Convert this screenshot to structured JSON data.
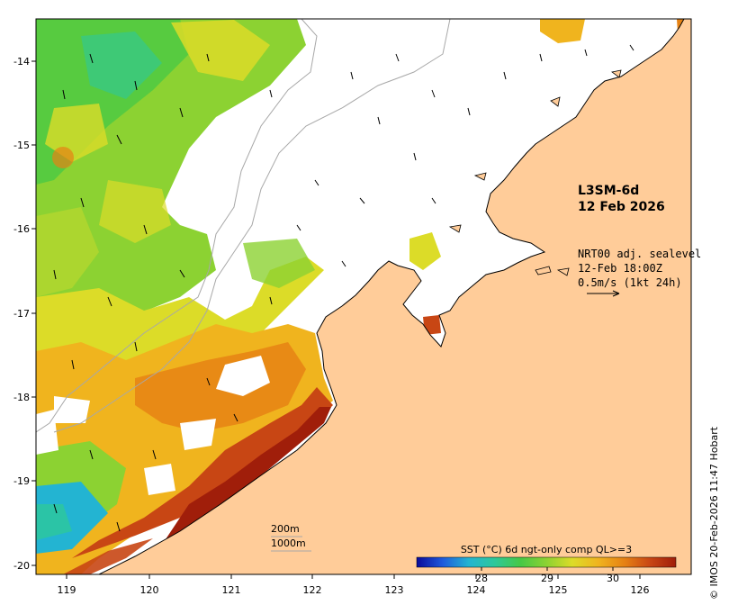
{
  "product": {
    "title": "L3SM-6d",
    "date": "12 Feb 2026"
  },
  "current": {
    "source": "NRT00 adj. sealevel",
    "time": "12-Feb 18:00Z",
    "scale": "0.5m/s (1kt 24h)"
  },
  "isobaths": {
    "shallow": "200m",
    "deep": "1000m"
  },
  "colorbar": {
    "title": "SST (°C) 6d ngt-only comp QL>=3",
    "ticks": [
      "28",
      "29",
      "30"
    ],
    "colors": [
      "#0a0a9a",
      "#1e5adc",
      "#23b4d2",
      "#2dc89b",
      "#46c846",
      "#8cd232",
      "#dcdc28",
      "#f0b41e",
      "#e68214",
      "#c84614",
      "#a01e0a"
    ]
  },
  "axes": {
    "x_ticks": [
      "119",
      "120",
      "121",
      "122",
      "123",
      "124",
      "125",
      "126"
    ],
    "y_ticks": [
      "-14",
      "-15",
      "-16",
      "-17",
      "-18",
      "-19",
      "-20"
    ]
  },
  "credit": "© IMOS 20-Feb-2026 11:47 Hobart",
  "colors": {
    "land": "#ffcc99",
    "no_data": "#ffffff",
    "coast": "#000000",
    "isobath": "#a8a8a8"
  }
}
